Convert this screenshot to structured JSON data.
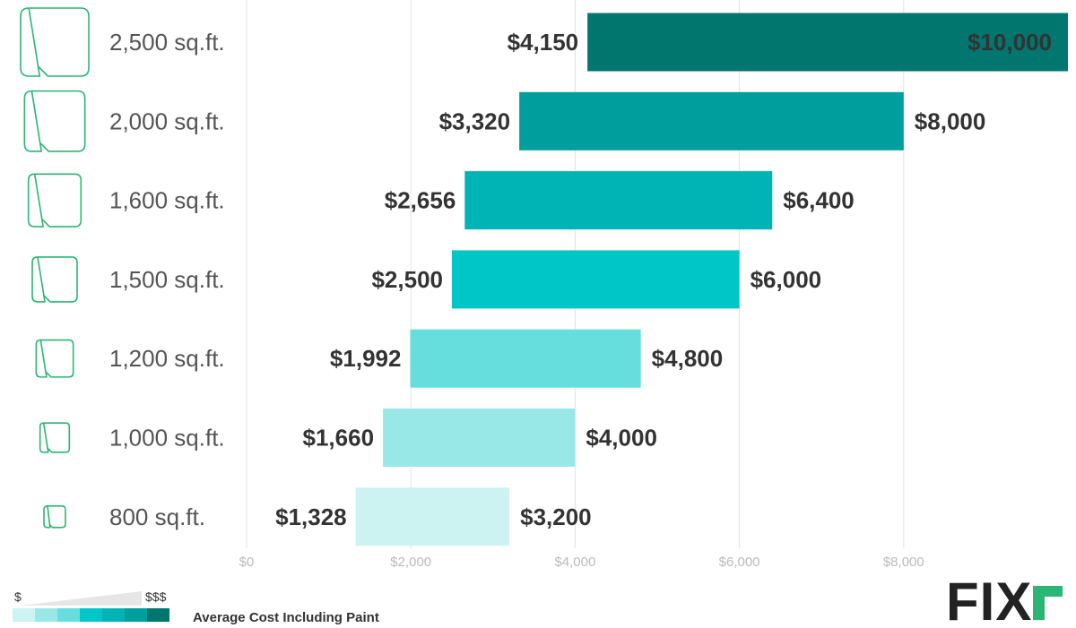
{
  "chart_data": {
    "type": "bar",
    "subtype": "floating-range-horizontal",
    "categories": [
      "2,500 sq.ft.",
      "2,000 sq.ft.",
      "1,600 sq.ft.",
      "1,500 sq.ft.",
      "1,200 sq.ft.",
      "1,000 sq.ft.",
      "800 sq.ft."
    ],
    "low_values": [
      4150,
      3320,
      2656,
      2500,
      1992,
      1660,
      1328
    ],
    "high_values": [
      10000,
      8000,
      6400,
      6000,
      4800,
      4000,
      3200
    ],
    "low_labels": [
      "$4,150",
      "$3,320",
      "$2,656",
      "$2,500",
      "$1,992",
      "$1,660",
      "$1,328"
    ],
    "high_labels": [
      "$10,000",
      "$8,000",
      "$6,400",
      "$6,000",
      "$4,800",
      "$4,000",
      "$3,200"
    ],
    "bar_colors": [
      "#00766f",
      "#009e9c",
      "#00b4b6",
      "#00c6c8",
      "#66dedd",
      "#99e8e8",
      "#ccf2f2"
    ],
    "x_ticks": [
      0,
      2000,
      4000,
      6000,
      8000
    ],
    "x_tick_labels": [
      "$0",
      "$2,000",
      "$4,000",
      "$6,000",
      "$8,000"
    ],
    "xlim": [
      0,
      10000
    ],
    "grid": true,
    "title": "",
    "xlabel": "",
    "ylabel": ""
  },
  "legend": {
    "low_symbol": "$",
    "high_symbol": "$$$",
    "label": "Average Cost Including Paint",
    "swatches": [
      "#ccf2f2",
      "#99e8e8",
      "#66dedd",
      "#00c6c8",
      "#00b4b6",
      "#009e9c",
      "#00766f"
    ]
  },
  "icons": {
    "room_icon": "room-floorplan-icon",
    "icon_color": "#2bb673"
  },
  "logo": {
    "text": "FIXR",
    "accent_color": "#2bb673"
  }
}
